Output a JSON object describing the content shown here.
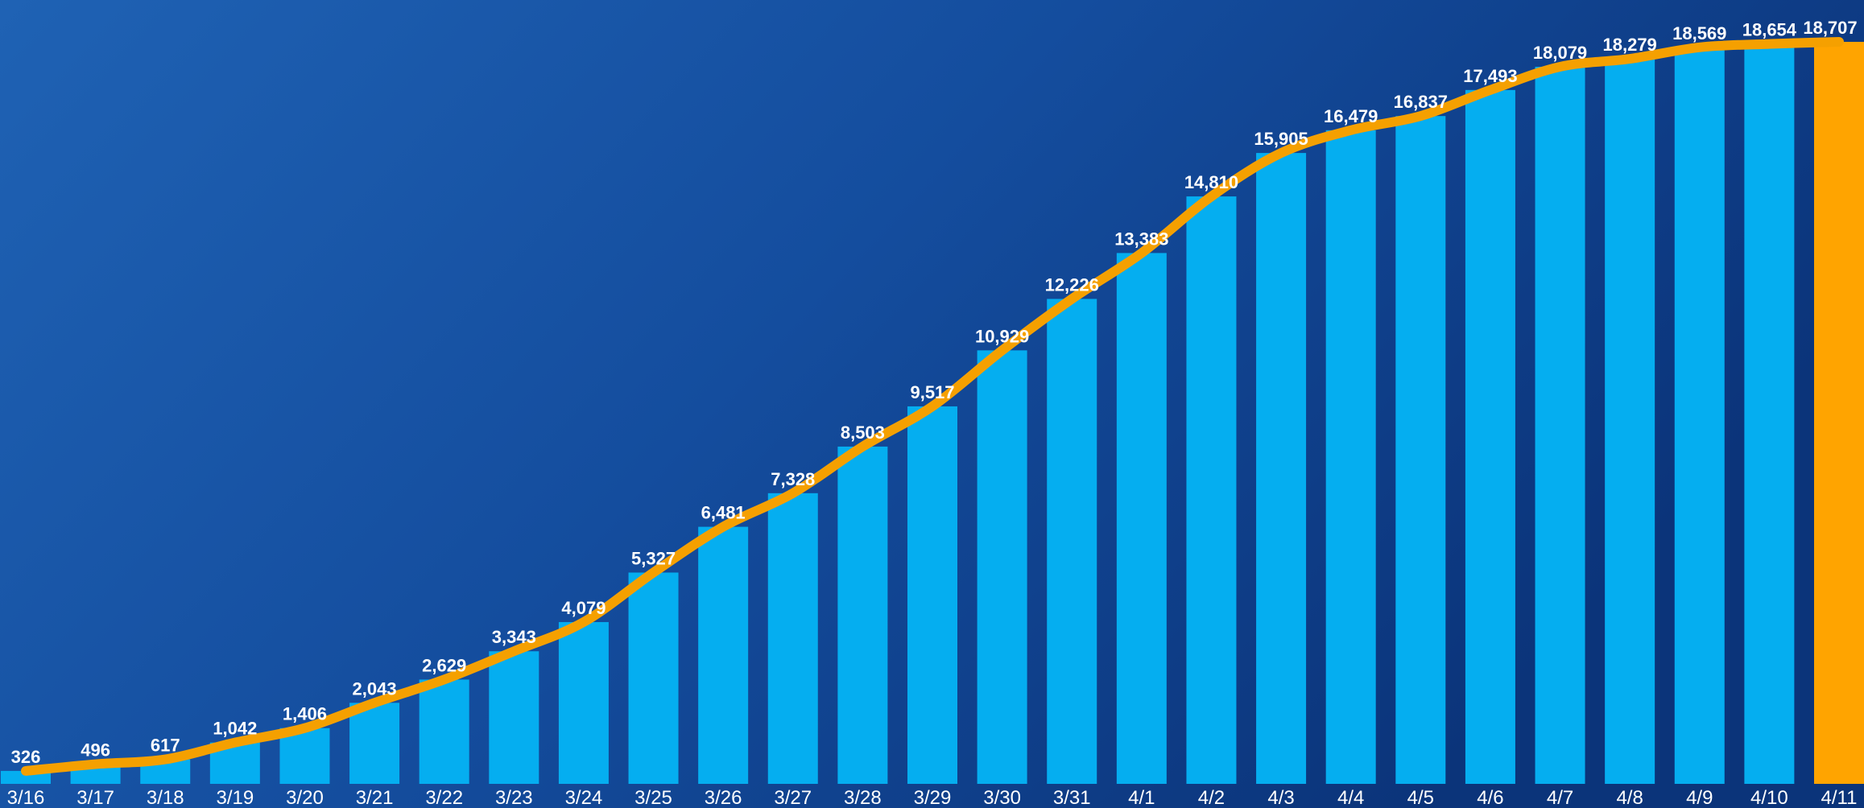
{
  "chart_data": {
    "type": "bar",
    "categories": [
      "3/16",
      "3/17",
      "3/18",
      "3/19",
      "3/20",
      "3/21",
      "3/22",
      "3/23",
      "3/24",
      "3/25",
      "3/26",
      "3/27",
      "3/28",
      "3/29",
      "3/30",
      "3/31",
      "4/1",
      "4/2",
      "4/3",
      "4/4",
      "4/5",
      "4/6",
      "4/7",
      "4/8",
      "4/9",
      "4/10",
      "4/11"
    ],
    "values": [
      326,
      496,
      617,
      1042,
      1406,
      2043,
      2629,
      3343,
      4079,
      5327,
      6481,
      7328,
      8503,
      9517,
      10929,
      12226,
      13383,
      14810,
      15905,
      16479,
      16837,
      17493,
      18079,
      18279,
      18569,
      18654,
      18707
    ],
    "value_labels": [
      "326",
      "496",
      "617",
      "1,042",
      "1,406",
      "2,043",
      "2,629",
      "3,343",
      "4,079",
      "5,327",
      "6,481",
      "7,328",
      "8,503",
      "9,517",
      "10,929",
      "12,226",
      "13,383",
      "14,810",
      "15,905",
      "16,479",
      "16,837",
      "17,493",
      "18,079",
      "18,279",
      "18,569",
      "18,654",
      "18,707"
    ],
    "colors": [
      "#05aef0",
      "#05aef0",
      "#05aef0",
      "#05aef0",
      "#05aef0",
      "#05aef0",
      "#05aef0",
      "#05aef0",
      "#05aef0",
      "#05aef0",
      "#05aef0",
      "#05aef0",
      "#05aef0",
      "#05aef0",
      "#05aef0",
      "#05aef0",
      "#05aef0",
      "#05aef0",
      "#05aef0",
      "#05aef0",
      "#05aef0",
      "#05aef0",
      "#05aef0",
      "#05aef0",
      "#05aef0",
      "#05aef0",
      "#ffa400"
    ],
    "trend_line": true,
    "trend_color": "#f5a000"
  }
}
